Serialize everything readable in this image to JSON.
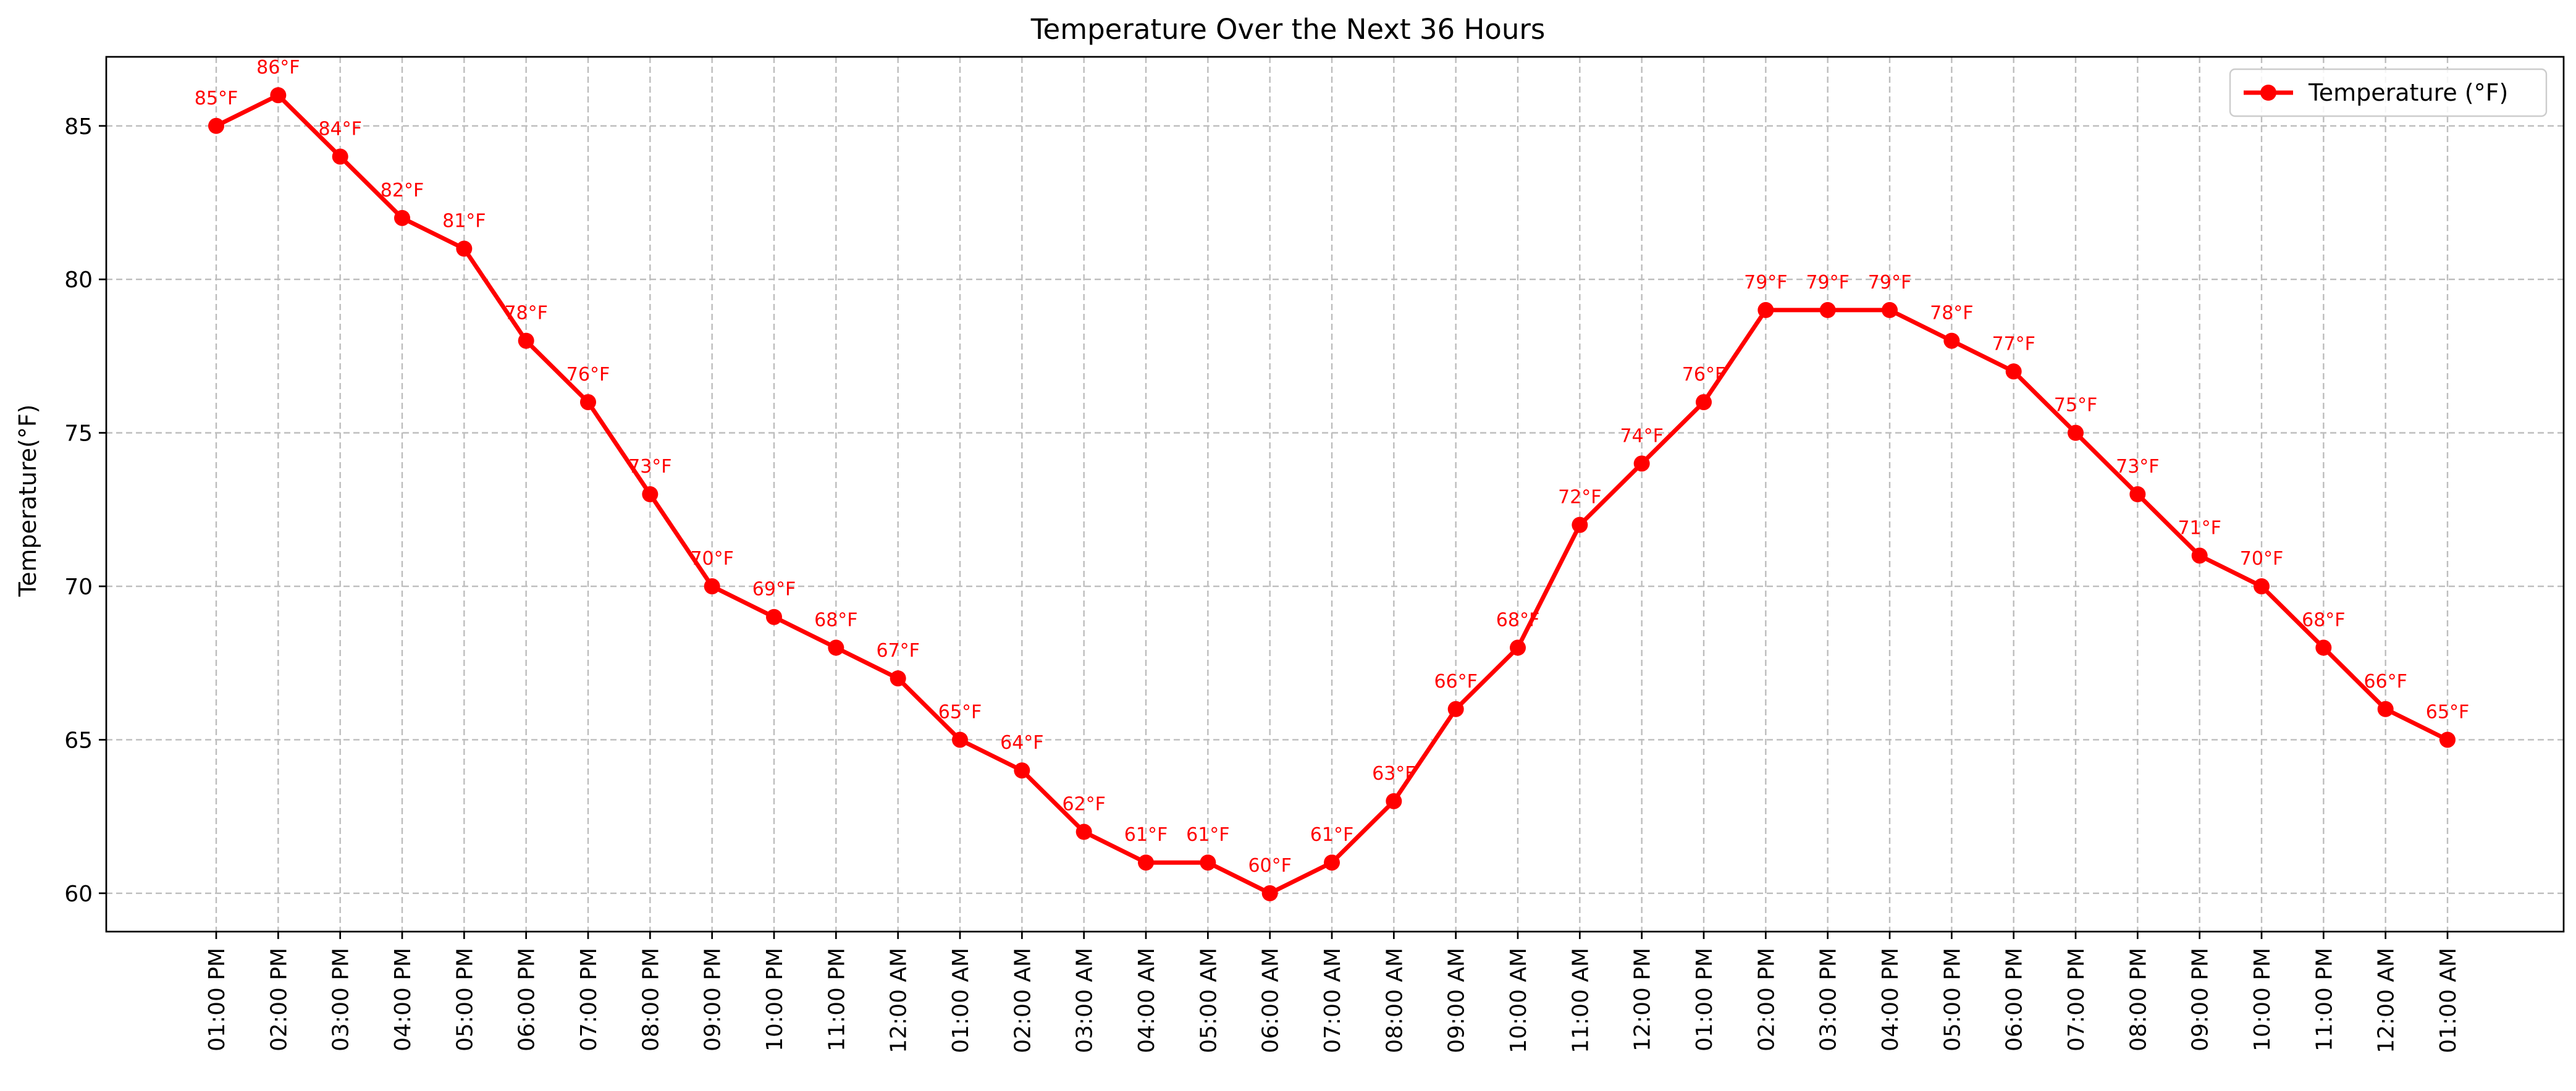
{
  "chart_data": {
    "type": "line",
    "title": "Temperature Over the Next 36 Hours",
    "xlabel": "",
    "ylabel": "Temperature(°F)",
    "ylim": [
      58.75,
      87.25
    ],
    "yticks": [
      60,
      65,
      70,
      75,
      80,
      85
    ],
    "grid": true,
    "legend_position": "top-right",
    "categories": [
      "01:00 PM",
      "02:00 PM",
      "03:00 PM",
      "04:00 PM",
      "05:00 PM",
      "06:00 PM",
      "07:00 PM",
      "08:00 PM",
      "09:00 PM",
      "10:00 PM",
      "11:00 PM",
      "12:00 AM",
      "01:00 AM",
      "02:00 AM",
      "03:00 AM",
      "04:00 AM",
      "05:00 AM",
      "06:00 AM",
      "07:00 AM",
      "08:00 AM",
      "09:00 AM",
      "10:00 AM",
      "11:00 AM",
      "12:00 PM",
      "01:00 PM",
      "02:00 PM",
      "03:00 PM",
      "04:00 PM",
      "05:00 PM",
      "06:00 PM",
      "07:00 PM",
      "08:00 PM",
      "09:00 PM",
      "10:00 PM",
      "11:00 PM",
      "12:00 AM",
      "01:00 AM"
    ],
    "series": [
      {
        "name": "Temperature (°F)",
        "color": "#ff0000",
        "values": [
          85,
          86,
          84,
          82,
          81,
          78,
          76,
          73,
          70,
          69,
          68,
          67,
          65,
          64,
          62,
          61,
          61,
          60,
          61,
          63,
          66,
          68,
          72,
          74,
          76,
          79,
          79,
          79,
          78,
          77,
          75,
          73,
          71,
          70,
          68,
          66,
          65
        ],
        "labels": [
          "85°F",
          "86°F",
          "84°F",
          "82°F",
          "81°F",
          "78°F",
          "76°F",
          "73°F",
          "70°F",
          "69°F",
          "68°F",
          "67°F",
          "65°F",
          "64°F",
          "62°F",
          "61°F",
          "61°F",
          "60°F",
          "61°F",
          "63°F",
          "66°F",
          "68°F",
          "72°F",
          "74°F",
          "76°F",
          "79°F",
          "79°F",
          "79°F",
          "78°F",
          "77°F",
          "75°F",
          "73°F",
          "71°F",
          "70°F",
          "68°F",
          "66°F",
          "65°F"
        ]
      }
    ]
  }
}
